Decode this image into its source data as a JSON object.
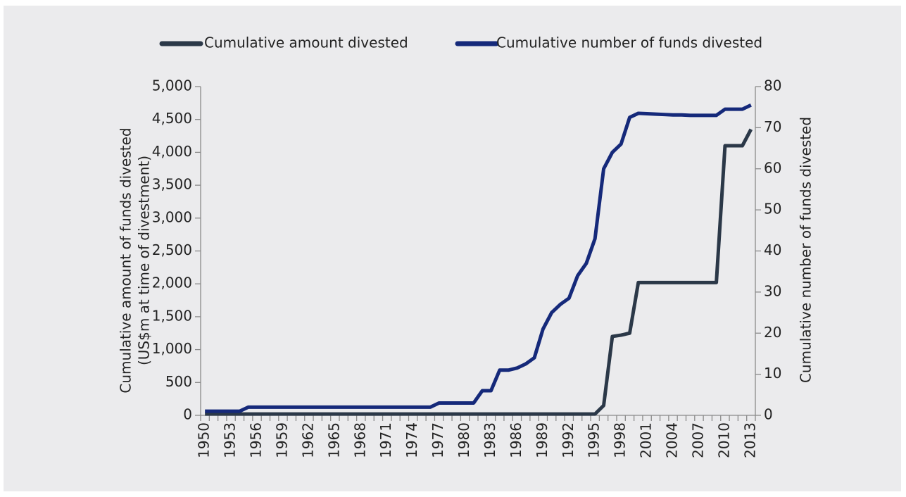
{
  "chart_data": {
    "type": "line",
    "legend": "top",
    "ylabel": [
      "Cumulative amount of funds divested",
      "(US$m at time of divestment)"
    ],
    "y2label": "Cumulative number of funds divested",
    "categories": [
      "1950",
      null,
      null,
      "1953",
      null,
      null,
      "1956",
      null,
      null,
      "1959",
      null,
      null,
      "1962",
      null,
      null,
      "1965",
      null,
      null,
      "1968",
      null,
      null,
      "1971",
      null,
      null,
      "1974",
      null,
      null,
      "1977",
      null,
      null,
      "1980",
      null,
      null,
      "1983",
      null,
      null,
      "1986",
      null,
      null,
      "1989",
      null,
      null,
      "1992",
      null,
      null,
      "1995",
      null,
      null,
      "1998",
      null,
      null,
      "2001",
      null,
      null,
      "2004",
      null,
      null,
      "2007",
      null,
      null,
      "2010",
      null,
      null,
      "2013"
    ],
    "ylim": [
      0,
      5000
    ],
    "yticks": [
      0,
      500,
      {
        "value": 1000,
        "label": "1,000"
      },
      {
        "value": 1500,
        "label": "1,500"
      },
      {
        "value": 2000,
        "label": "2,000"
      },
      {
        "value": 2500,
        "label": "2,500"
      },
      {
        "value": 3000,
        "label": "3,000"
      },
      {
        "value": 3500,
        "label": "3,500"
      },
      {
        "value": 4000,
        "label": "4,000"
      },
      {
        "value": 4500,
        "label": "4,500"
      },
      {
        "value": 5000,
        "label": "5,000"
      }
    ],
    "y2lim": [
      0,
      80
    ],
    "y2ticks": [
      0,
      10,
      20,
      30,
      40,
      50,
      60,
      70,
      80
    ],
    "series": [
      {
        "name": "Cumulative amount divested",
        "color": "#2b3848",
        "values": [
          20,
          20,
          20,
          20,
          20,
          20,
          20,
          20,
          20,
          20,
          20,
          20,
          20,
          20,
          20,
          20,
          20,
          20,
          20,
          20,
          20,
          20,
          20,
          20,
          20,
          20,
          20,
          20,
          20,
          20,
          20,
          20,
          20,
          20,
          20,
          20,
          20,
          20,
          20,
          20,
          20,
          20,
          20,
          20,
          20,
          20,
          150,
          1200,
          1220,
          1250,
          2020,
          2020,
          2020,
          2020,
          2020,
          2020,
          2020,
          2020,
          2020,
          2020,
          4100,
          4100,
          4100,
          4350
        ]
      },
      {
        "name": "Cumulative number of funds divested",
        "color": "#15297a",
        "axis": "y2",
        "values": [
          1,
          1,
          1,
          1,
          1,
          2,
          2,
          2,
          2,
          2,
          2,
          2,
          2,
          2,
          2,
          2,
          2,
          2,
          2,
          2,
          2,
          2,
          2,
          2,
          2,
          2,
          2,
          3,
          3,
          3,
          3,
          3,
          6,
          6,
          11,
          11,
          11.5,
          12.5,
          14,
          21,
          25,
          27,
          28.5,
          34,
          37,
          43,
          60,
          64,
          66,
          72.5,
          73.5,
          73.4,
          73.3,
          73.2,
          73.1,
          73.1,
          73,
          73,
          73,
          73,
          74.5,
          74.5,
          74.5,
          75.5
        ]
      }
    ]
  }
}
